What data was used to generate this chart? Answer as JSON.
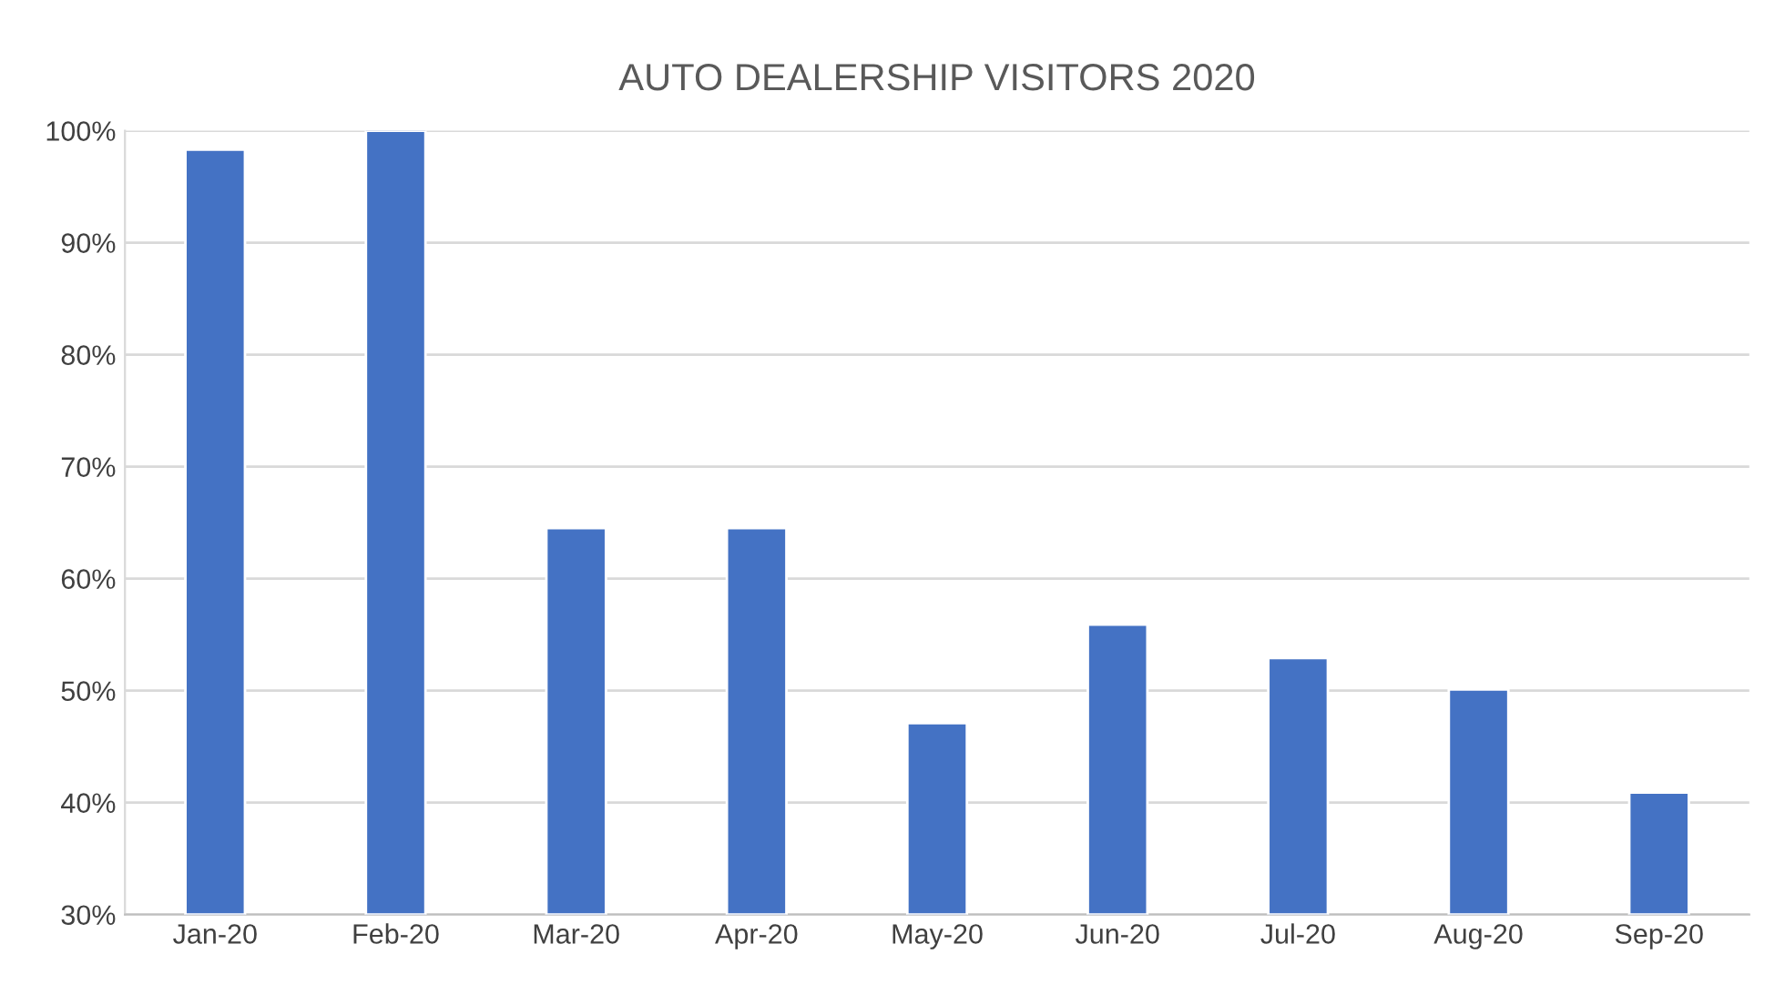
{
  "chart_data": {
    "type": "bar",
    "title": "AUTO DEALERSHIP VISITORS 2020",
    "categories": [
      "Jan-20",
      "Feb-20",
      "Mar-20",
      "Apr-20",
      "May-20",
      "Jun-20",
      "Jul-20",
      "Aug-20",
      "Sep-20"
    ],
    "values": [
      98.3,
      100,
      64.5,
      64.5,
      47.1,
      55.9,
      52.9,
      50.1,
      40.9
    ],
    "color": "#4472c4",
    "ylim": [
      30,
      100
    ],
    "yticks": [
      {
        "value": 30,
        "label": "30%"
      },
      {
        "value": 40,
        "label": "40%"
      },
      {
        "value": 50,
        "label": "50%"
      },
      {
        "value": 60,
        "label": "60%"
      },
      {
        "value": 70,
        "label": "70%"
      },
      {
        "value": 80,
        "label": "80%"
      },
      {
        "value": 90,
        "label": "90%"
      },
      {
        "value": 100,
        "label": "100%"
      }
    ],
    "grid": "y"
  }
}
